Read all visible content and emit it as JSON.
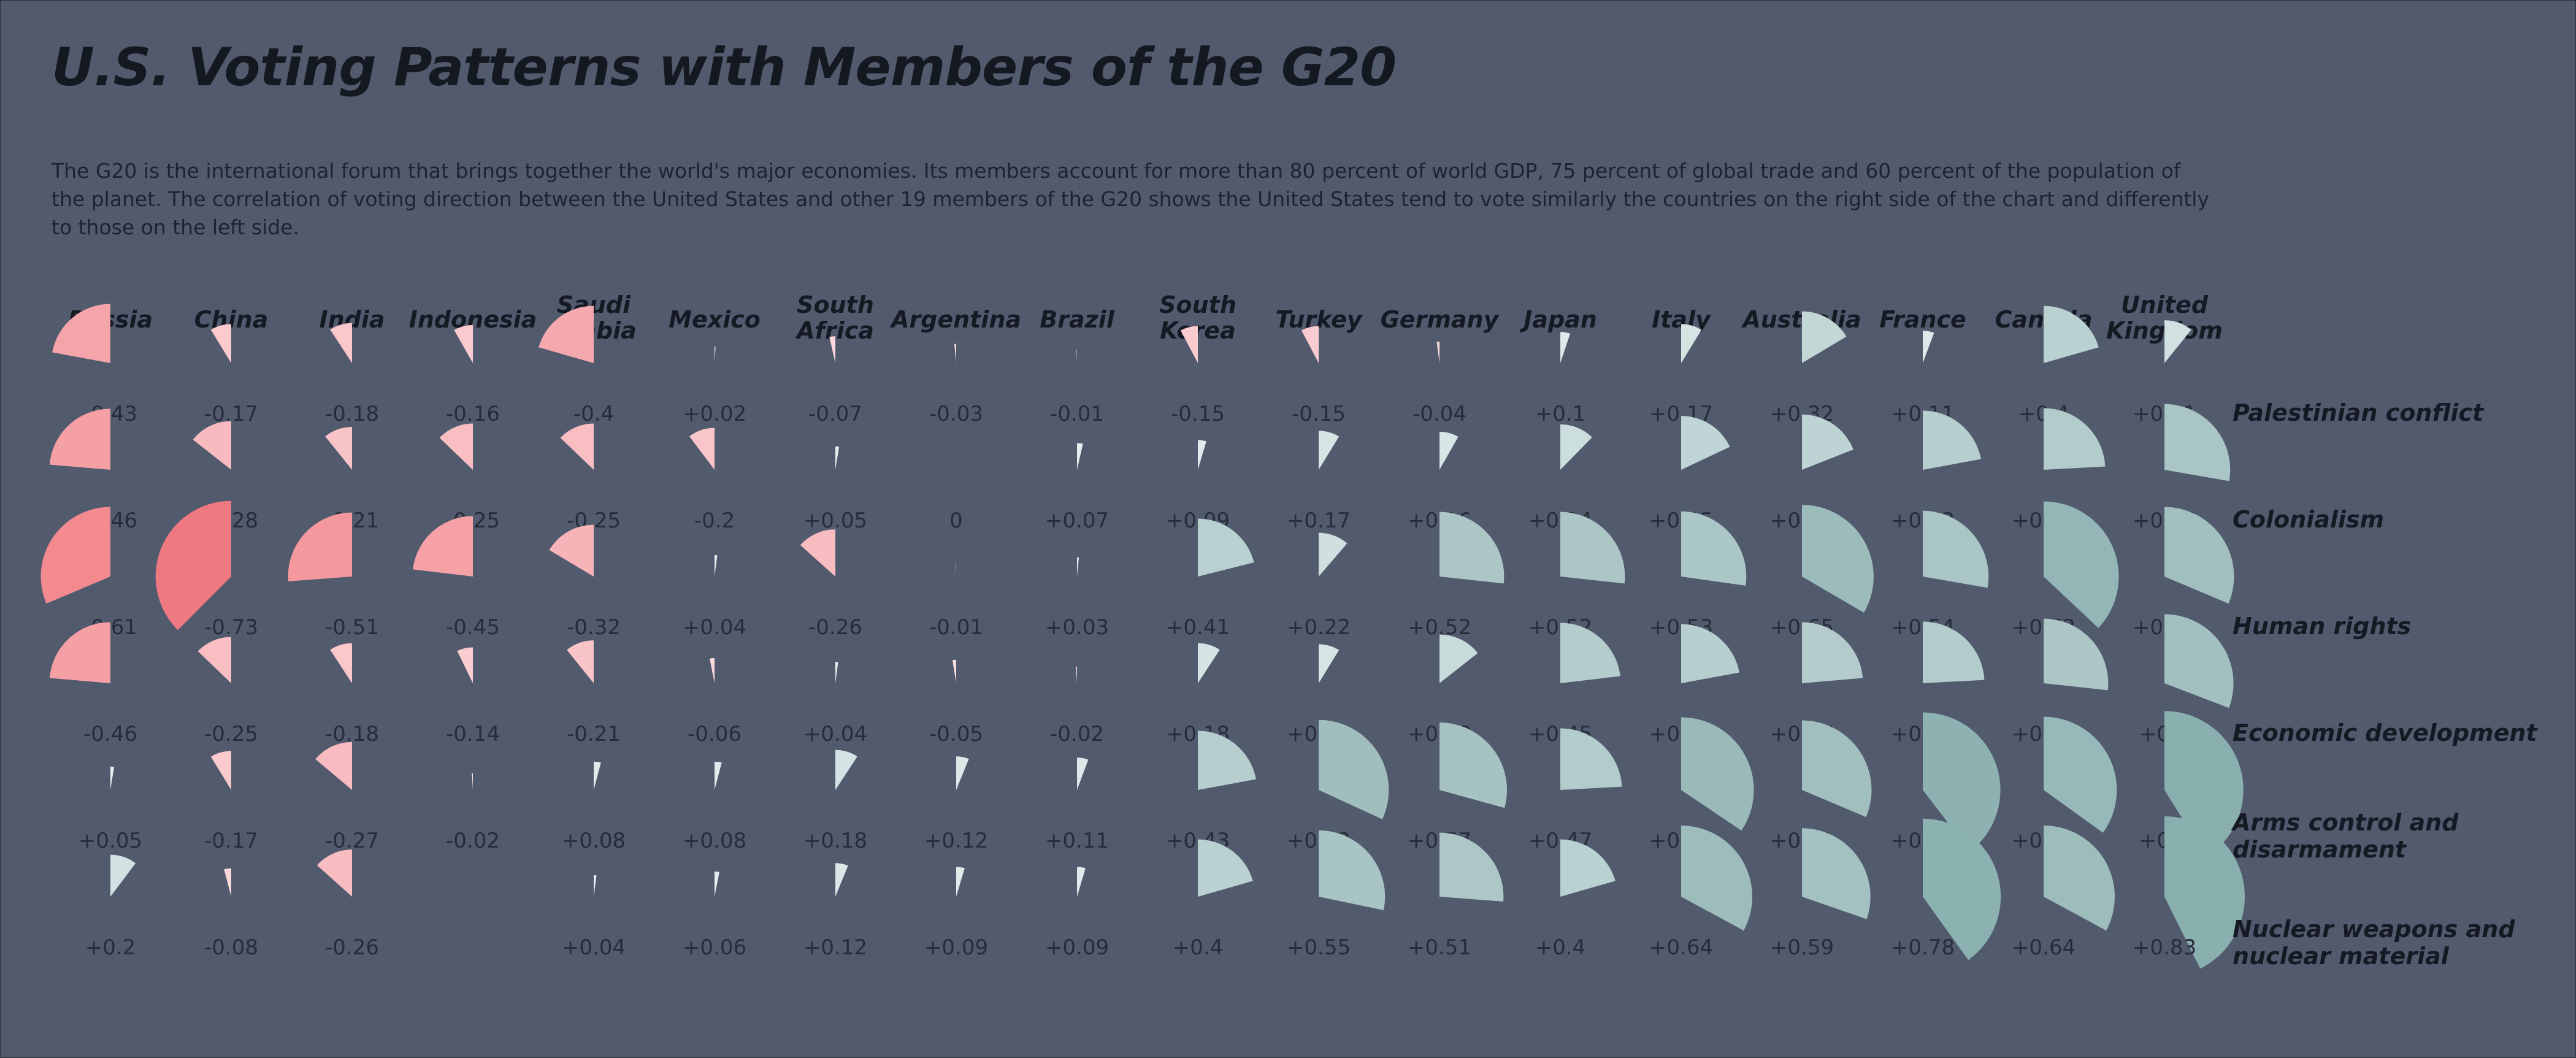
{
  "title": "U.S. Voting Patterns with Members of the G20",
  "subtitle": "The G20 is the international forum that brings together the world's major economies. Its members account for more than 80 percent of world GDP, 75 percent of global trade and 60 percent of the population of the planet. The correlation of voting direction between the United States and other 19 members of the G20 shows the United States tend to vote similarly the countries on the right side of the chart and differently to those on the left side.",
  "colors": {
    "background": "#525a6e",
    "negative_light": "#fde2e4",
    "negative_strong": "#ee6f76",
    "positive_light": "#eaf2f2",
    "positive_strong": "#8aafaf"
  },
  "chart_data": {
    "type": "heatmap",
    "mark": "quarter-radial-wedge sized by correlation magnitude",
    "countries": [
      "Russia",
      "China",
      "India",
      "Indonesia",
      "Saudi Arabia",
      "Mexico",
      "South Africa",
      "Argentina",
      "Brazil",
      "South Korea",
      "Turkey",
      "Germany",
      "Japan",
      "Italy",
      "Australia",
      "France",
      "Canada",
      "United Kingdom"
    ],
    "country_lines": [
      [
        "Russia"
      ],
      [
        "China"
      ],
      [
        "India"
      ],
      [
        "Indonesia"
      ],
      [
        "Saudi",
        "Arabia"
      ],
      [
        "Mexico"
      ],
      [
        "South",
        "Africa"
      ],
      [
        "Argentina"
      ],
      [
        "Brazil"
      ],
      [
        "South",
        "Korea"
      ],
      [
        "Turkey"
      ],
      [
        "Germany"
      ],
      [
        "Japan"
      ],
      [
        "Italy"
      ],
      [
        "Australia"
      ],
      [
        "France"
      ],
      [
        "Canada"
      ],
      [
        "United",
        "Kingdom"
      ]
    ],
    "issues": [
      "Palestinian conflict",
      "Colonialism",
      "Human rights",
      "Economic development",
      "Arms control and disarmament",
      "Nuclear weapons and nuclear material"
    ],
    "issue_lines": [
      [
        "Palestinian conflict"
      ],
      [
        "Colonialism"
      ],
      [
        "Human rights"
      ],
      [
        "Economic development"
      ],
      [
        "Arms control and",
        "disarmament"
      ],
      [
        "Nuclear weapons and",
        "nuclear material"
      ]
    ],
    "values": [
      [
        -0.43,
        -0.17,
        -0.18,
        -0.16,
        -0.4,
        0.02,
        -0.07,
        -0.03,
        -0.01,
        -0.15,
        -0.15,
        -0.04,
        0.1,
        0.17,
        0.32,
        0.11,
        0.4,
        0.21
      ],
      [
        -0.46,
        -0.28,
        -0.21,
        -0.25,
        -0.25,
        -0.2,
        0.05,
        0,
        0.07,
        0.09,
        0.17,
        0.16,
        0.24,
        0.35,
        0.37,
        0.43,
        0.47,
        0.54
      ],
      [
        -0.61,
        -0.73,
        -0.51,
        -0.45,
        -0.32,
        0.04,
        -0.26,
        -0.01,
        0.03,
        0.41,
        0.22,
        0.52,
        0.52,
        0.53,
        0.65,
        0.54,
        0.72,
        0.61
      ],
      [
        -0.46,
        -0.25,
        -0.18,
        -0.14,
        -0.21,
        -0.06,
        0.04,
        -0.05,
        -0.02,
        0.18,
        0.17,
        0.28,
        0.45,
        0.43,
        0.46,
        0.47,
        0.52,
        0.6
      ],
      [
        0.05,
        -0.17,
        -0.27,
        -0.02,
        0.08,
        0.08,
        0.18,
        0.12,
        0.11,
        0.43,
        0.62,
        0.57,
        0.47,
        0.67,
        0.61,
        0.77,
        0.68,
        0.8
      ],
      [
        0.2,
        -0.08,
        -0.26,
        null,
        0.04,
        0.06,
        0.12,
        0.09,
        0.09,
        0.4,
        0.55,
        0.51,
        0.4,
        0.64,
        0.59,
        0.78,
        0.64,
        0.83
      ]
    ],
    "labels": [
      [
        "-0.43",
        "-0.17",
        "-0.18",
        "-0.16",
        "-0.4",
        "+0.02",
        "-0.07",
        "-0.03",
        "-0.01",
        "-0.15",
        "-0.15",
        "-0.04",
        "+0.1",
        "+0.17",
        "+0.32",
        "+0.11",
        "+0.4",
        "+0.21"
      ],
      [
        "-0.46",
        "-0.28",
        "-0.21",
        "-0.25",
        "-0.25",
        "-0.2",
        "+0.05",
        "0",
        "+0.07",
        "+0.09",
        "+0.17",
        "+0.16",
        "+0.24",
        "+0.35",
        "+0.37",
        "+0.43",
        "+0.47",
        "+0.54"
      ],
      [
        "-0.61",
        "-0.73",
        "-0.51",
        "-0.45",
        "-0.32",
        "+0.04",
        "-0.26",
        "-0.01",
        "+0.03",
        "+0.41",
        "+0.22",
        "+0.52",
        "+0.52",
        "+0.53",
        "+0.65",
        "+0.54",
        "+0.72",
        "+0.61"
      ],
      [
        "-0.46",
        "-0.25",
        "-0.18",
        "-0.14",
        "-0.21",
        "-0.06",
        "+0.04",
        "-0.05",
        "-0.02",
        "+0.18",
        "+0.17",
        "+0.28",
        "+0.45",
        "+0.43",
        "+0.46",
        "+0.47",
        "+0.52",
        "+0.6"
      ],
      [
        "+0.05",
        "-0.17",
        "-0.27",
        "-0.02",
        "+0.08",
        "+0.08",
        "+0.18",
        "+0.12",
        "+0.11",
        "+0.43",
        "+0.62",
        "+0.57",
        "+0.47",
        "+0.67",
        "+0.61",
        "+0.77",
        "+0.68",
        "+0.8"
      ],
      [
        "+0.2",
        "-0.08",
        "-0.26",
        "",
        "+0.04",
        "+0.06",
        "+0.12",
        "+0.09",
        "+0.09",
        "+0.4",
        "+0.55",
        "+0.51",
        "+0.4",
        "+0.64",
        "+0.59",
        "+0.78",
        "+0.64",
        "+0.83"
      ]
    ],
    "title": "U.S. Voting Patterns with Members of the G20",
    "legend": "none",
    "grid": false
  }
}
